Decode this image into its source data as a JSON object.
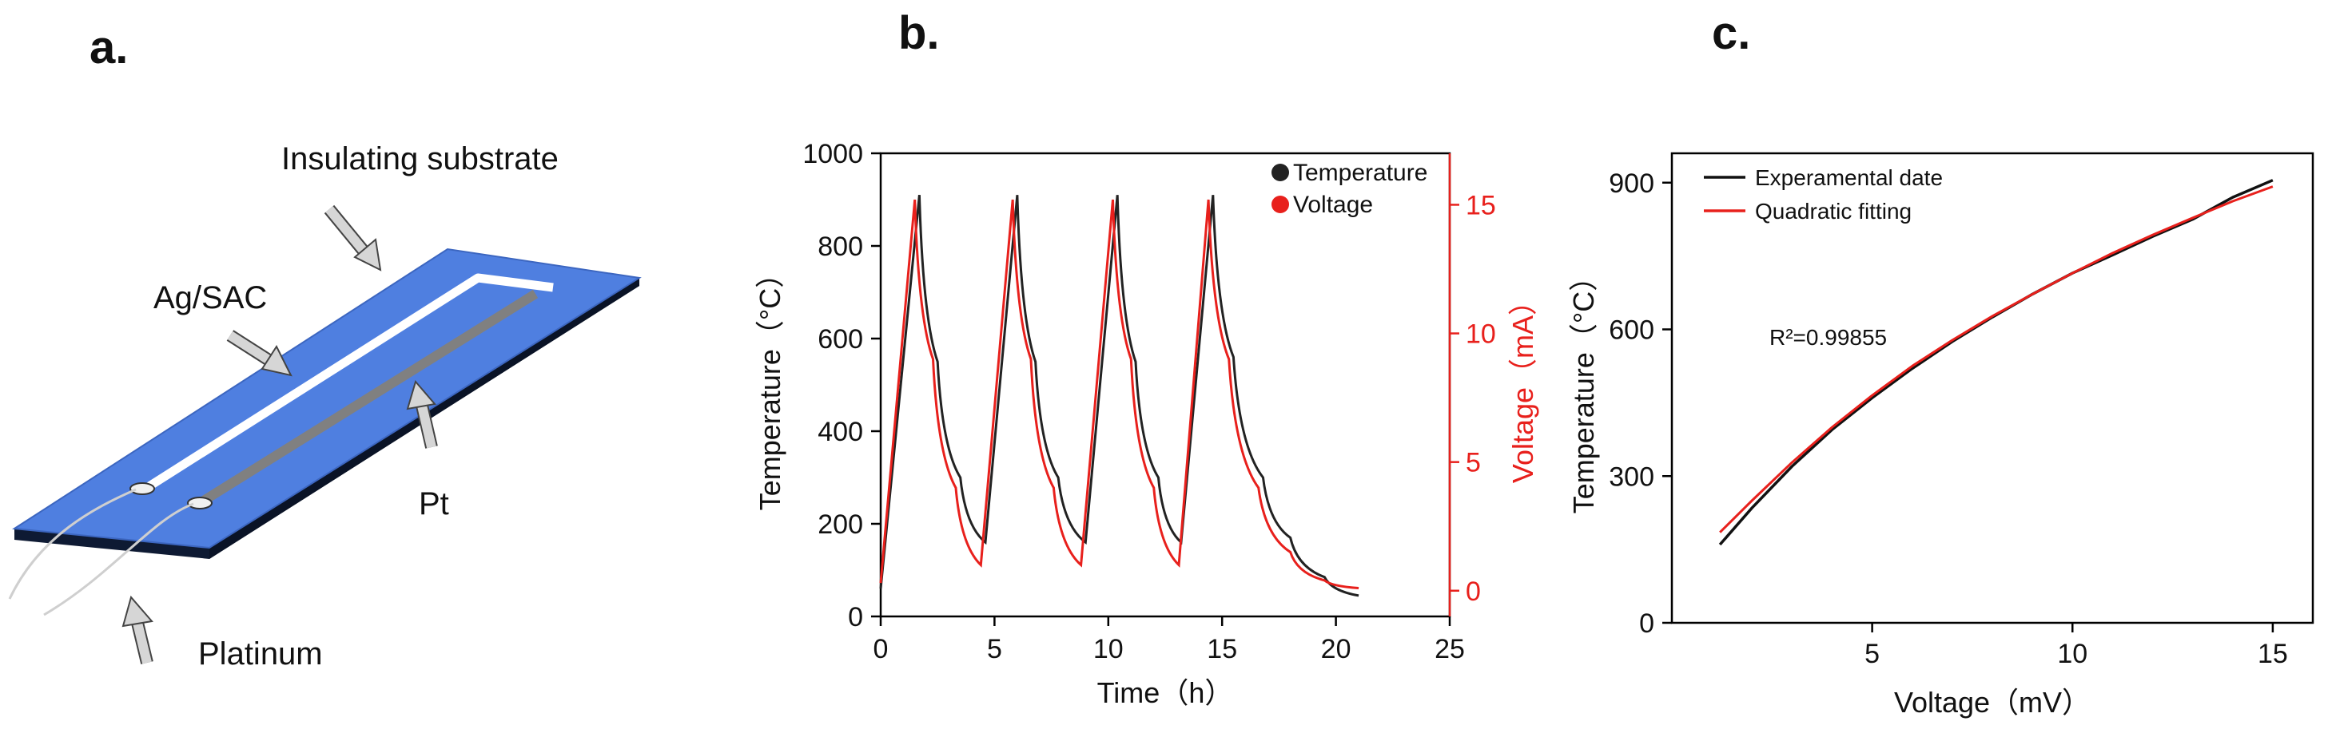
{
  "panels": {
    "a": {
      "letter": "a.",
      "labels": {
        "insulating_substrate": "Insulating substrate",
        "ag_sac": "Ag/SAC",
        "pt": "Pt",
        "platinum": "Platinum"
      },
      "colors": {
        "substrate_top": "#4f7fe0",
        "substrate_side": "#0e1a33",
        "pt_strip": "#808080",
        "ag_strip": "#ffffff"
      }
    },
    "b": {
      "letter": "b."
    },
    "c": {
      "letter": "c.",
      "annotation": "R²=0.99855"
    }
  },
  "chart_data": [
    {
      "id": "b",
      "type": "line",
      "xlabel": "Time（h）",
      "ylabel": "Temperature（°C）",
      "y2label": "Voltage（mA）",
      "xlim": [
        0,
        25
      ],
      "ylim": [
        0,
        1000
      ],
      "y2lim": [
        -1,
        17
      ],
      "x_ticks": [
        0,
        5,
        10,
        15,
        20,
        25
      ],
      "y_ticks": [
        0,
        200,
        400,
        600,
        800,
        1000
      ],
      "y2_ticks": [
        0,
        5,
        10,
        15
      ],
      "legend_position": "top-right",
      "grid": false,
      "colors": {
        "temperature": "#222222",
        "voltage": "#e8201c"
      },
      "series": [
        {
          "name": "Temperature",
          "axis": "left",
          "x": [
            0,
            1.7,
            2.5,
            3.5,
            4.6,
            6.0,
            6.8,
            7.8,
            9.0,
            10.4,
            11.2,
            12.2,
            13.2,
            14.6,
            15.5,
            16.8,
            18.0,
            19.5,
            21.0
          ],
          "y": [
            60,
            910,
            550,
            300,
            160,
            910,
            550,
            300,
            160,
            910,
            550,
            300,
            160,
            910,
            560,
            300,
            170,
            85,
            45
          ]
        },
        {
          "name": "Voltage",
          "axis": "right",
          "x": [
            0,
            1.5,
            2.3,
            3.3,
            4.4,
            5.8,
            6.6,
            7.6,
            8.8,
            10.2,
            11.0,
            12.0,
            13.1,
            14.4,
            15.3,
            16.6,
            18.0,
            19.5,
            21.0
          ],
          "y": [
            0.3,
            15.2,
            9.0,
            4.0,
            1.0,
            15.2,
            9.0,
            4.0,
            1.0,
            15.2,
            9.0,
            4.0,
            1.0,
            15.2,
            9.0,
            4.0,
            1.5,
            0.4,
            0.1
          ]
        }
      ]
    },
    {
      "id": "c",
      "type": "line",
      "xlabel": "Voltage（mV）",
      "ylabel": "Temperature（°C）",
      "xlim": [
        0,
        16
      ],
      "ylim": [
        0,
        960
      ],
      "x_ticks": [
        5,
        10,
        15
      ],
      "y_ticks": [
        0,
        300,
        600,
        900
      ],
      "legend_position": "top-left",
      "grid": false,
      "colors": {
        "experimental": "#111111",
        "fit": "#e8201c"
      },
      "series": [
        {
          "name": "Experamental date",
          "x": [
            1.2,
            2,
            3,
            4,
            5,
            6,
            7,
            8,
            9,
            10,
            11,
            12,
            13,
            14,
            15
          ],
          "y": [
            160,
            235,
            320,
            395,
            460,
            520,
            575,
            625,
            672,
            715,
            752,
            790,
            825,
            870,
            905
          ]
        },
        {
          "name": "Quadratic fitting",
          "x": [
            1.2,
            2,
            3,
            4,
            5,
            6,
            7,
            8,
            9,
            10,
            11,
            12,
            13,
            14,
            15
          ],
          "y": [
            185,
            250,
            328,
            400,
            465,
            525,
            578,
            627,
            672,
            715,
            756,
            793,
            828,
            862,
            892
          ]
        }
      ]
    }
  ]
}
